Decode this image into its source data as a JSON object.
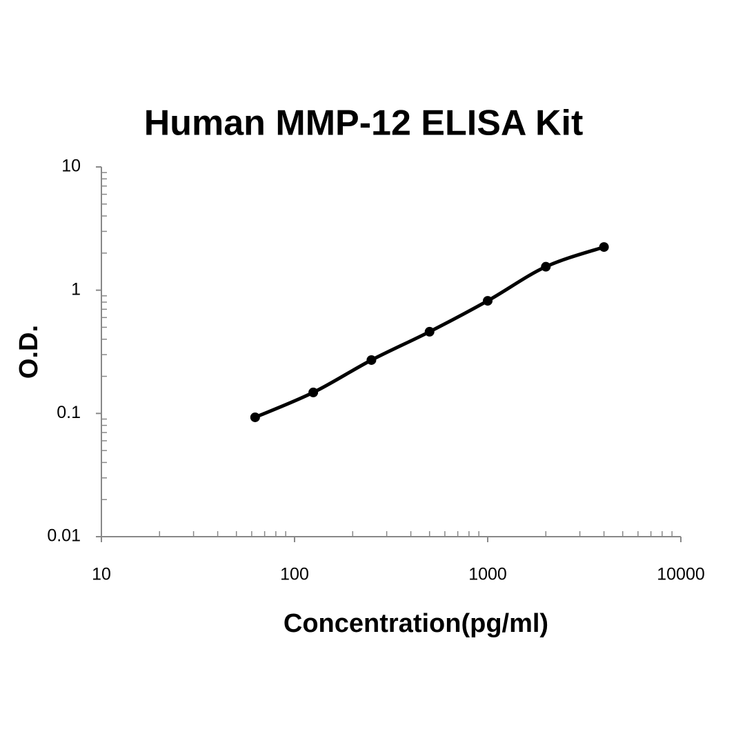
{
  "chart_data": {
    "type": "scatter",
    "title": "Human MMP-12 ELISA Kit",
    "x_label": "Concentration(pg/ml)",
    "y_label": "O.D.",
    "x": [
      62.5,
      125,
      250,
      500,
      1000,
      2000,
      4000
    ],
    "values": [
      0.093,
      0.148,
      0.271,
      0.46,
      0.82,
      1.55,
      2.24
    ],
    "color": "#000000",
    "fit_line": true,
    "xlim": [
      10,
      10000
    ],
    "ylim": [
      0.01,
      10
    ],
    "xticks": [
      10,
      100,
      1000,
      10000
    ],
    "yticks": [
      0.01,
      0.1,
      1,
      10
    ],
    "log_x": true,
    "log_y": true,
    "minor_ticks": true,
    "grid": false
  }
}
